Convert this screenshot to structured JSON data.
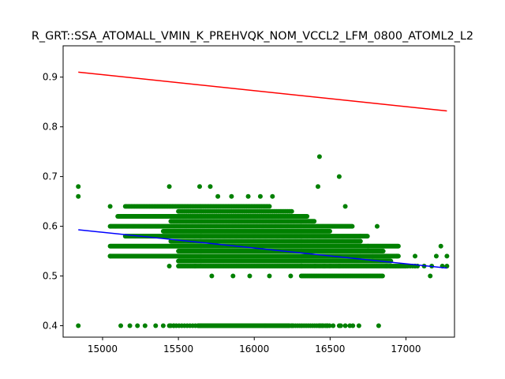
{
  "chart_data": {
    "type": "scatter",
    "title": "R_GRT::SSA_ATOMALL_VMIN_K_PREHVQK_NOM_VCCL2_LFM_0800_ATOML2_L2",
    "xlabel": "",
    "ylabel": "",
    "xlim": [
      14740,
      17320
    ],
    "ylim": [
      0.377,
      0.963
    ],
    "x_ticks": [
      15000,
      15500,
      16000,
      16500,
      17000
    ],
    "x_tick_labels": [
      "15000",
      "15500",
      "16000",
      "16500",
      "17000"
    ],
    "y_ticks": [
      0.4,
      0.5,
      0.6,
      0.7,
      0.8,
      0.9
    ],
    "y_tick_labels": [
      "0.4",
      "0.5",
      "0.6",
      "0.7",
      "0.8",
      "0.9"
    ],
    "grid": false,
    "colors": {
      "points": "#008000",
      "upper_line": "#ff0000",
      "fit_line": "#0000ff"
    },
    "lines": [
      {
        "role": "upper",
        "x": [
          14840,
          17270
        ],
        "y": [
          0.91,
          0.832
        ]
      },
      {
        "role": "fit",
        "x": [
          14840,
          17270
        ],
        "y": [
          0.593,
          0.516
        ]
      }
    ],
    "point_bands": [
      {
        "y": 0.4,
        "x_range": [
          15630,
          16230
        ],
        "step": 6
      },
      {
        "y": 0.4,
        "x_range": [
          15450,
          15630
        ],
        "step": 18
      },
      {
        "y": 0.4,
        "x_range": [
          16230,
          16500
        ],
        "step": 14
      },
      {
        "y": 0.5,
        "x_range": [
          16310,
          16850
        ],
        "step": 8
      },
      {
        "y": 0.52,
        "x_range": [
          15500,
          17000
        ],
        "step": 10
      },
      {
        "y": 0.52,
        "x_range": [
          16900,
          17080
        ],
        "step": 16
      },
      {
        "y": 0.53,
        "x_range": [
          15500,
          16900
        ],
        "step": 5
      },
      {
        "y": 0.54,
        "x_range": [
          15050,
          16950
        ],
        "step": 5
      },
      {
        "y": 0.55,
        "x_range": [
          15500,
          16850
        ],
        "step": 5
      },
      {
        "y": 0.56,
        "x_range": [
          15050,
          16950
        ],
        "step": 5
      },
      {
        "y": 0.57,
        "x_range": [
          15450,
          16700
        ],
        "step": 5
      },
      {
        "y": 0.58,
        "x_range": [
          15150,
          16750
        ],
        "step": 6
      },
      {
        "y": 0.59,
        "x_range": [
          15400,
          16500
        ],
        "step": 6
      },
      {
        "y": 0.6,
        "x_range": [
          15050,
          16650
        ],
        "step": 6
      },
      {
        "y": 0.61,
        "x_range": [
          15450,
          16400
        ],
        "step": 7
      },
      {
        "y": 0.62,
        "x_range": [
          15100,
          16350
        ],
        "step": 6
      },
      {
        "y": 0.63,
        "x_range": [
          15500,
          16250
        ],
        "step": 9
      },
      {
        "y": 0.64,
        "x_range": [
          15150,
          16100
        ],
        "step": 10
      }
    ],
    "points": {
      "x": [
        14840,
        14840,
        14840,
        15050,
        15050,
        15120,
        15180,
        15230,
        15280,
        15350,
        15400,
        15440,
        15470,
        16070,
        16250,
        16430,
        16450,
        16480,
        16520,
        16560,
        16570,
        16600,
        16630,
        16650,
        16690,
        16820,
        16930,
        17060,
        17160,
        17170,
        17200,
        17230,
        17240,
        17270,
        17270,
        15440,
        15640,
        15710,
        15760,
        15850,
        15960,
        16040,
        16120,
        16420,
        16430,
        16560,
        16600,
        15440,
        15610,
        15720,
        15860,
        15970,
        16100,
        16240,
        16310,
        16400,
        16460,
        16500,
        16560,
        16700,
        16780,
        16870,
        16940,
        17060,
        17120,
        16700,
        16750,
        16810
      ],
      "y": [
        0.68,
        0.66,
        0.4,
        0.54,
        0.64,
        0.4,
        0.4,
        0.4,
        0.4,
        0.4,
        0.4,
        0.4,
        0.4,
        0.4,
        0.4,
        0.4,
        0.4,
        0.4,
        0.4,
        0.4,
        0.4,
        0.4,
        0.4,
        0.4,
        0.4,
        0.4,
        0.52,
        0.52,
        0.5,
        0.52,
        0.54,
        0.56,
        0.52,
        0.52,
        0.54,
        0.68,
        0.68,
        0.68,
        0.66,
        0.66,
        0.66,
        0.66,
        0.66,
        0.68,
        0.74,
        0.7,
        0.64,
        0.52,
        0.52,
        0.5,
        0.5,
        0.5,
        0.5,
        0.5,
        0.52,
        0.52,
        0.52,
        0.52,
        0.52,
        0.54,
        0.54,
        0.52,
        0.54,
        0.54,
        0.52,
        0.58,
        0.56,
        0.6
      ]
    }
  }
}
